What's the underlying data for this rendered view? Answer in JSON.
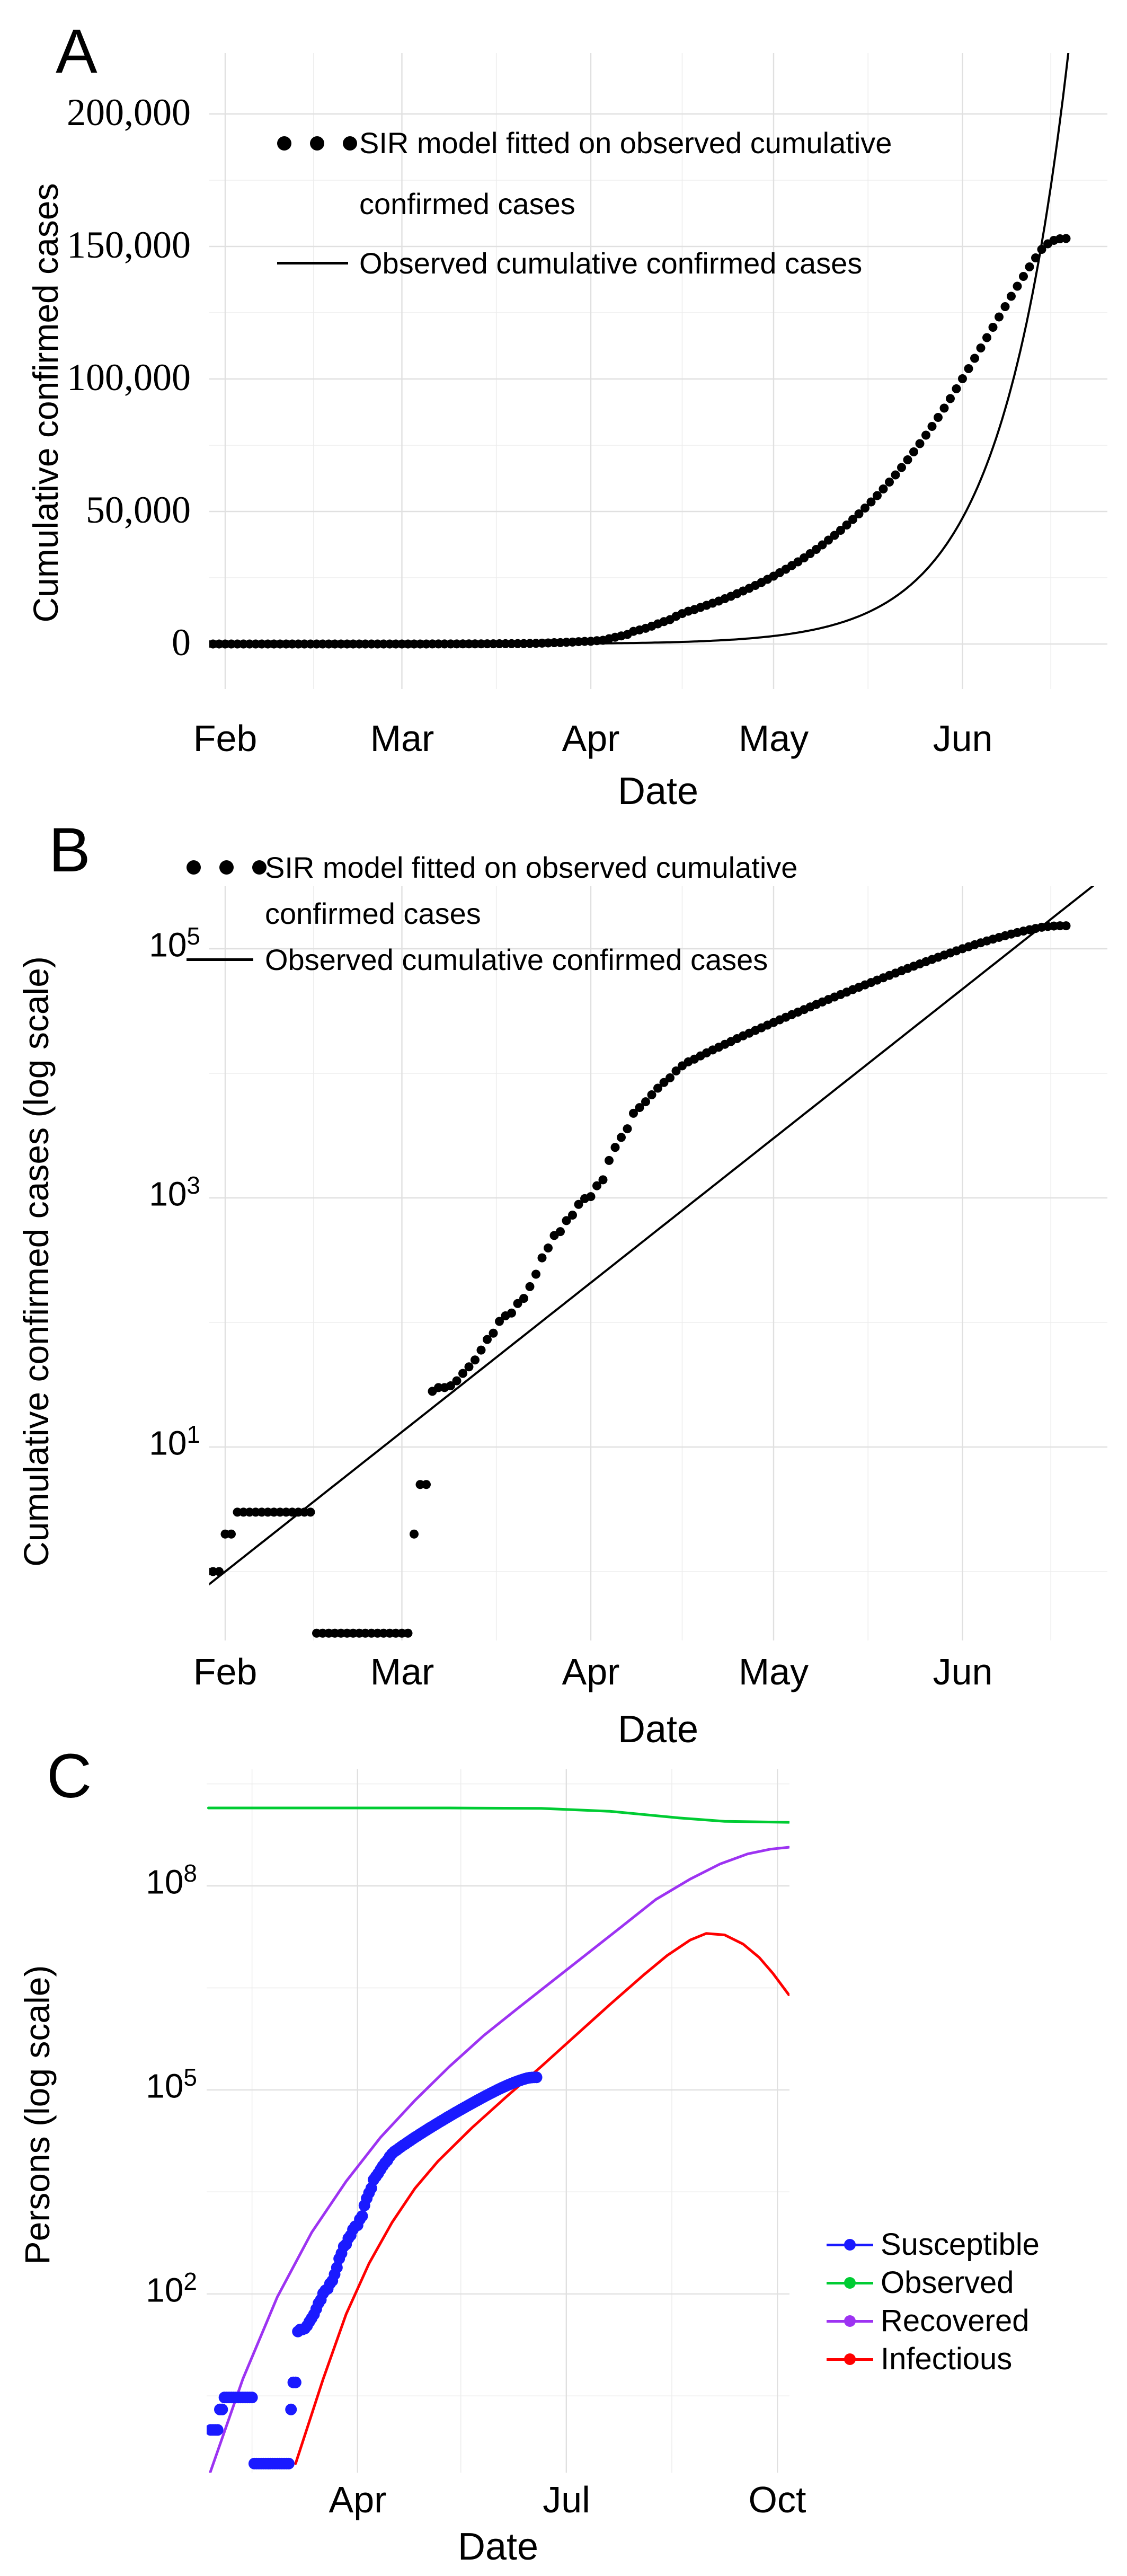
{
  "figure": {
    "panels": {
      "A": {
        "letter": "A",
        "y_axis_title": "Cumulative confirmed cases",
        "x_axis_title": "Date",
        "legend": {
          "line1": "SIR model fitted on observed cumulative",
          "line2": "confirmed cases",
          "line3": "Observed cumulative confirmed cases"
        }
      },
      "B": {
        "letter": "B",
        "y_axis_title": "Cumulative confirmed cases (log scale)",
        "x_axis_title": "Date",
        "legend": {
          "line1": "SIR model fitted on observed cumulative",
          "line2": "confirmed cases",
          "line3": "Observed cumulative confirmed cases"
        }
      },
      "C": {
        "letter": "C",
        "y_axis_title": "Persons (log scale)",
        "x_axis_title": "Date",
        "legend_items": [
          {
            "label": "Susceptible",
            "color_key": "susceptible_blue"
          },
          {
            "label": "Observed",
            "color_key": "observed_green"
          },
          {
            "label": "Recovered",
            "color_key": "recovered_purple"
          },
          {
            "label": "Infectious",
            "color_key": "infectious_red"
          }
        ]
      }
    }
  },
  "colors": {
    "data_dots": "#000000",
    "model_line": "#000000",
    "susceptible_blue": "#1A1AFF",
    "observed_green": "#00CC33",
    "recovered_purple": "#9D33F2",
    "infectious_red": "#FF0000",
    "grid_major": "#E0E0E0",
    "grid_minor": "#EDEDED",
    "text": "#000000"
  },
  "chart_data": {
    "x_unit": "days since Feb 1, 2020",
    "observed": {
      "note": "black/blue dotted series as drawn: value 1-3 plateau, low dash, then growth to 153,000",
      "runs": [
        [
          -4,
          -1,
          1
        ],
        [
          0,
          1,
          2
        ],
        [
          2,
          14,
          3
        ],
        [
          15,
          30,
          0.32
        ],
        [
          31,
          31,
          2
        ]
      ],
      "daily_start": 32,
      "daily": [
        5,
        5,
        28,
        30,
        30,
        31,
        34,
        39,
        44,
        50,
        60,
        73,
        82,
        102,
        113,
        119,
        142,
        156,
        194,
        244,
        330,
        396,
        499,
        536,
        657,
        727,
        887,
        987,
        1024,
        1251,
        1397,
        1998,
        2543,
        3059,
        3588,
        4778,
        5311,
        5916,
        6725,
        7600,
        8446,
        9205,
        10453,
        11487,
        12370,
        13000,
        13800,
        14600,
        15400,
        16200,
        17100,
        18000,
        19000,
        20000,
        21000,
        22100,
        23200,
        24400,
        25600,
        26900,
        28200,
        29600,
        31000,
        32500,
        34100,
        35700,
        37400,
        39200,
        41000,
        42900,
        44900,
        47000,
        49100,
        51300,
        53600,
        56000,
        58500,
        61100,
        63800,
        66600,
        69500,
        72500,
        75600,
        78800,
        82100,
        85500,
        89000,
        92600,
        96300,
        100100,
        103900,
        107800,
        111700,
        115600,
        119500,
        123400,
        127300,
        131200,
        135000,
        138700,
        142300,
        145700,
        148900,
        151000,
        152300,
        152900,
        153000
      ]
    },
    "panels": [
      {
        "id": "A",
        "type": "scatter",
        "yscale": "linear",
        "ylim": [
          0,
          230000
        ],
        "x_ticks": [
          {
            "t": 0,
            "label": "Feb"
          },
          {
            "t": 29,
            "label": "Mar"
          },
          {
            "t": 60,
            "label": "Apr"
          },
          {
            "t": 90,
            "label": "May"
          },
          {
            "t": 121,
            "label": "Jun"
          }
        ],
        "x_minor_t": [
          14.5,
          44.5,
          75,
          105.5,
          135.5
        ],
        "y_ticks": [
          {
            "v": 200000,
            "label": "200,000"
          },
          {
            "v": 150000,
            "label": "150,000"
          },
          {
            "v": 100000,
            "label": "100,000"
          },
          {
            "v": 50000,
            "label": "50,000"
          },
          {
            "v": 0,
            "label": "0"
          }
        ],
        "y_minor_v": [
          25000,
          75000,
          125000,
          175000
        ],
        "series": [
          {
            "name": "Observed cumulative confirmed cases",
            "style": "line",
            "color_key": "model_line",
            "width": 4,
            "exp": {
              "v0": 1.0,
              "r": 0.089,
              "t0": -5,
              "t1": 146,
              "step": 0.5
            }
          },
          {
            "name": "SIR model fitted on observed cumulative confirmed cases",
            "style": "dots",
            "color_key": "data_dots",
            "r": 8.5,
            "source": "observed"
          }
        ]
      },
      {
        "id": "B",
        "type": "scatter",
        "yscale": "log",
        "ylim": [
          0.3,
          320000
        ],
        "x_ticks": [
          {
            "t": 0,
            "label": "Feb"
          },
          {
            "t": 29,
            "label": "Mar"
          },
          {
            "t": 60,
            "label": "Apr"
          },
          {
            "t": 90,
            "label": "May"
          },
          {
            "t": 121,
            "label": "Jun"
          }
        ],
        "x_minor_t": [
          14.5,
          44.5,
          75,
          105.5,
          135.5
        ],
        "y_ticks": [
          {
            "v": 100000,
            "base": "10",
            "exp": "5"
          },
          {
            "v": 1000,
            "base": "10",
            "exp": "3"
          },
          {
            "v": 10,
            "base": "10",
            "exp": "1"
          }
        ],
        "y_minor_v": [
          10000,
          100,
          1
        ],
        "series": [
          {
            "name": "Observed cumulative confirmed cases",
            "style": "line",
            "color_key": "model_line",
            "width": 4,
            "exp": {
              "v0": 1.0,
              "r": 0.089,
              "t0": -5,
              "t1": 146,
              "step": 0.5
            }
          },
          {
            "name": "SIR model fitted on observed cumulative confirmed cases",
            "style": "dots",
            "color_key": "data_dots",
            "r": 8.5,
            "source": "observed"
          }
        ]
      },
      {
        "id": "C",
        "type": "line",
        "yscale": "log",
        "ylim": [
          0.2,
          5000000000
        ],
        "x_ticks": [
          {
            "t": 60,
            "label": "Apr"
          },
          {
            "t": 151,
            "label": "Jul"
          },
          {
            "t": 243,
            "label": "Oct"
          }
        ],
        "x_minor_t": [
          14,
          105,
          197
        ],
        "y_ticks": [
          {
            "v": 100000000,
            "base": "10",
            "exp": "8"
          },
          {
            "v": 100000,
            "base": "10",
            "exp": "5"
          },
          {
            "v": 100,
            "base": "10",
            "exp": "2"
          }
        ],
        "y_minor_v": [
          3162000000,
          3162000,
          3162,
          3.162
        ],
        "series": [
          {
            "name": "Recovered",
            "style": "line",
            "color_key": "recovered_purple",
            "width": 5,
            "points": [
              [
                -5,
                0.2
              ],
              [
                10,
                5.6
              ],
              [
                25,
                90
              ],
              [
                40,
                800
              ],
              [
                55,
                4500
              ],
              [
                70,
                20000
              ],
              [
                85,
                70000
              ],
              [
                100,
                220000
              ],
              [
                115,
                630000
              ],
              [
                130,
                1600000
              ],
              [
                145,
                4000000
              ],
              [
                160,
                10000000
              ],
              [
                175,
                25000000
              ],
              [
                190,
                63000000
              ],
              [
                205,
                126000000
              ],
              [
                218,
                210000000
              ],
              [
                230,
                295000000
              ],
              [
                240,
                347000000
              ],
              [
                248,
                370000000
              ]
            ]
          },
          {
            "name": "Infectious",
            "style": "line",
            "color_key": "infectious_red",
            "width": 5,
            "points": [
              [
                33,
                0.32
              ],
              [
                45,
                5.6
              ],
              [
                55,
                50
              ],
              [
                65,
                280
              ],
              [
                75,
                1120
              ],
              [
                85,
                3550
              ],
              [
                95,
                8900
              ],
              [
                110,
                28000
              ],
              [
                125,
                80000
              ],
              [
                140,
                220000
              ],
              [
                155,
                630000
              ],
              [
                170,
                1800000
              ],
              [
                185,
                5000000
              ],
              [
                195,
                9500000
              ],
              [
                205,
                16000000
              ],
              [
                212,
                20000000
              ],
              [
                220,
                19000000
              ],
              [
                228,
                14000000
              ],
              [
                235,
                8900000
              ],
              [
                241,
                5200000
              ],
              [
                248,
                2500000
              ]
            ]
          },
          {
            "name": "Observed",
            "style": "line",
            "color_key": "observed_green",
            "width": 5,
            "points": [
              [
                -5,
                1400000000
              ],
              [
                100,
                1400000000
              ],
              [
                140,
                1380000000
              ],
              [
                170,
                1250000000
              ],
              [
                200,
                1000000000
              ],
              [
                220,
                890000000
              ],
              [
                248,
                860000000
              ]
            ]
          },
          {
            "name": "Susceptible",
            "style": "dots",
            "color_key": "susceptible_blue",
            "r": 11,
            "source": "observed"
          }
        ]
      }
    ]
  }
}
